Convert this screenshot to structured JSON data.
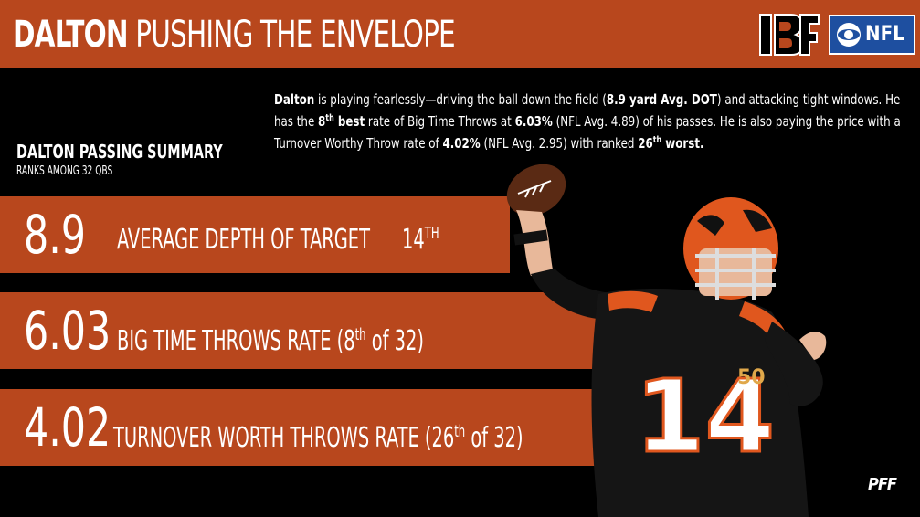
{
  "header": {
    "title_bold": "DALTON",
    "title_rest": "PUSHING THE ENVELOPE",
    "logos": [
      "bengals-logo",
      "cbs-nfl-logo"
    ],
    "cbs_nfl_text": "NFL"
  },
  "summary": {
    "title": "DALTON PASSING SUMMARY",
    "subtitle": "RANKS AMONG 32 QBS"
  },
  "description": {
    "p1": "Dalton",
    "p2": " is playing fearlessly—driving the ball down the field (",
    "p3": "8.9 yard Avg. DOT",
    "p4": ") and attacking tight windows.  He has the ",
    "p5": "8",
    "p6": "th",
    "p7": " best",
    "p8": " rate of Big Time Throws at ",
    "p9": "6.03%",
    "p10": " (NFL Avg. 4.89) of his passes.  He is also paying the price with a Turnover Worthy Throw rate of ",
    "p11": "4.02%",
    "p12": " (NFL Avg. 2.95) with ranked ",
    "p13": "26",
    "p14": "th",
    "p15": " worst."
  },
  "stats": [
    {
      "value": "8.9",
      "label": "AVERAGE DEPTH OF TARGET",
      "rank": "14",
      "rank_sup": "TH"
    },
    {
      "value": "6.03",
      "label_pre": "BIG TIME THROWS RATE (8",
      "label_sup": "th",
      "label_post": " of 32)"
    },
    {
      "value": "4.02",
      "label_pre": "TURNOVER WORTH THROWS RATE (26",
      "label_sup": "th",
      "label_post": " of 32)"
    }
  ],
  "footer": {
    "brand": "PFF"
  },
  "colors": {
    "accent": "#b8471d",
    "background": "#000000",
    "text": "#ffffff"
  },
  "player": {
    "jersey_number": "14",
    "patch_number": "50"
  }
}
